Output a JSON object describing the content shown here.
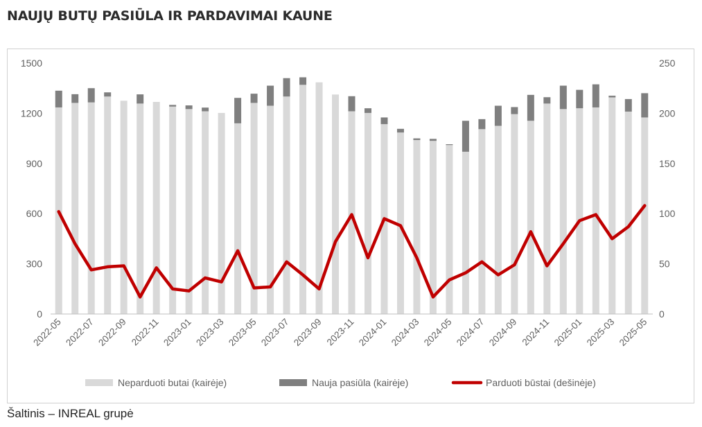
{
  "title": "NAUJŲ BUTŲ PASIŪLA IR PARDAVIMAI KAUNE",
  "source": "Šaltinis – INREAL grupė",
  "colors": {
    "unsold": "#d9d9d9",
    "new_supply": "#7f7f7f",
    "sold": "#c00000",
    "axis_text": "#5f5f5f"
  },
  "chart_data": {
    "type": "bar",
    "categories": [
      "2022-05",
      "2022-06",
      "2022-07",
      "2022-08",
      "2022-09",
      "2022-10",
      "2022-11",
      "2022-12",
      "2023-01",
      "2023-02",
      "2023-03",
      "2023-04",
      "2023-05",
      "2023-06",
      "2023-07",
      "2023-08",
      "2023-09",
      "2023-10",
      "2023-11",
      "2023-12",
      "2024-01",
      "2024-02",
      "2024-03",
      "2024-04",
      "2024-05",
      "2024-06",
      "2024-07",
      "2024-08",
      "2024-09",
      "2024-10",
      "2024-11",
      "2024-12",
      "2025-01",
      "2025-02",
      "2025-03",
      "2025-04",
      "2025-05"
    ],
    "x_tick_labels": [
      "2022-05",
      "2022-07",
      "2022-09",
      "2022-11",
      "2023-01",
      "2023-03",
      "2023-05",
      "2023-07",
      "2023-09",
      "2023-11",
      "2024-01",
      "2024-03",
      "2024-05",
      "2024-07",
      "2024-09",
      "2024-11",
      "2025-01",
      "2025-03",
      "2025-05"
    ],
    "series": [
      {
        "name": "Neparduoti butai (kairėje)",
        "type": "bar",
        "axis": "left",
        "values": [
          1235,
          1262,
          1265,
          1300,
          1275,
          1258,
          1268,
          1240,
          1225,
          1212,
          1202,
          1140,
          1262,
          1245,
          1300,
          1370,
          1385,
          1312,
          1212,
          1202,
          1135,
          1085,
          1040,
          1035,
          1010,
          970,
          1105,
          1125,
          1195,
          1155,
          1258,
          1225,
          1230,
          1235,
          1295,
          1210,
          1175
        ]
      },
      {
        "name": "Nauja pasiūla (kairėje)",
        "type": "bar",
        "axis": "left",
        "values": [
          100,
          52,
          85,
          25,
          0,
          55,
          0,
          10,
          22,
          22,
          0,
          152,
          55,
          120,
          110,
          45,
          0,
          0,
          90,
          28,
          40,
          22,
          10,
          12,
          5,
          185,
          60,
          120,
          42,
          155,
          38,
          140,
          110,
          138,
          10,
          75,
          145
        ]
      },
      {
        "name": "Parduoti būstai (dešinėje)",
        "type": "line",
        "axis": "right",
        "values": [
          102,
          70,
          44,
          47,
          48,
          17,
          46,
          25,
          23,
          36,
          32,
          63,
          26,
          27,
          52,
          39,
          25,
          72,
          99,
          56,
          95,
          88,
          56,
          17,
          34,
          41,
          52,
          39,
          49,
          82,
          48,
          70,
          93,
          99,
          75,
          87,
          108
        ]
      }
    ],
    "left_axis": {
      "min": 0,
      "max": 1500,
      "ticks": [
        0,
        300,
        600,
        900,
        1200,
        1500
      ]
    },
    "right_axis": {
      "min": 0,
      "max": 250,
      "ticks": [
        0,
        50,
        100,
        150,
        200,
        250
      ]
    },
    "legend": {
      "position": "bottom"
    },
    "grid": false
  }
}
